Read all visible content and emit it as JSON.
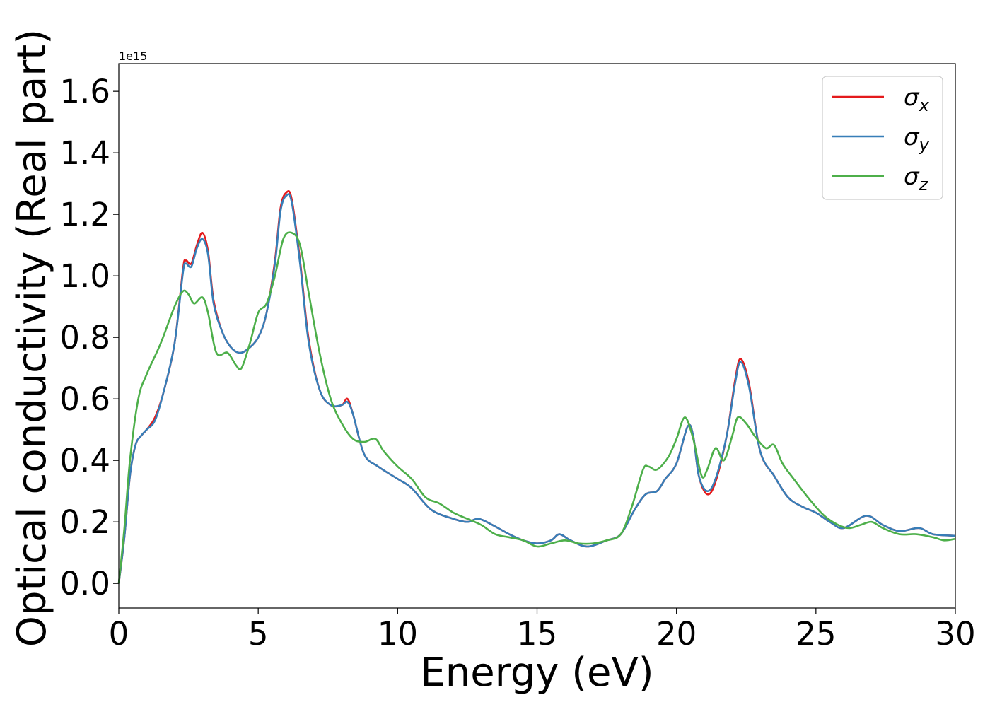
{
  "chart_data": {
    "type": "line",
    "xlabel": "Energy (eV)",
    "ylabel": "Optical conductivity (Real part)",
    "y_offset_label": "1e15",
    "xlim": [
      0,
      30
    ],
    "ylim": [
      -0.08,
      1.69
    ],
    "x_ticks": [
      0,
      5,
      10,
      15,
      20,
      25,
      30
    ],
    "y_ticks": [
      0.0,
      0.2,
      0.4,
      0.6,
      0.8,
      1.0,
      1.2,
      1.4,
      1.6
    ],
    "grid": false,
    "legend_position": "top-right",
    "series": [
      {
        "name": "σ",
        "subscript": "x",
        "color": "#e41a1c",
        "points": [
          [
            0,
            0.0
          ],
          [
            0.2,
            0.15
          ],
          [
            0.4,
            0.35
          ],
          [
            0.6,
            0.45
          ],
          [
            0.8,
            0.48
          ],
          [
            1.0,
            0.5
          ],
          [
            1.3,
            0.54
          ],
          [
            1.6,
            0.62
          ],
          [
            2.0,
            0.78
          ],
          [
            2.3,
            1.02
          ],
          [
            2.4,
            1.05
          ],
          [
            2.6,
            1.04
          ],
          [
            2.8,
            1.1
          ],
          [
            3.0,
            1.14
          ],
          [
            3.2,
            1.08
          ],
          [
            3.4,
            0.92
          ],
          [
            3.7,
            0.82
          ],
          [
            4.0,
            0.77
          ],
          [
            4.3,
            0.75
          ],
          [
            4.6,
            0.76
          ],
          [
            5.0,
            0.8
          ],
          [
            5.3,
            0.88
          ],
          [
            5.6,
            1.05
          ],
          [
            5.8,
            1.22
          ],
          [
            6.0,
            1.27
          ],
          [
            6.2,
            1.25
          ],
          [
            6.5,
            1.05
          ],
          [
            6.8,
            0.8
          ],
          [
            7.2,
            0.63
          ],
          [
            7.6,
            0.58
          ],
          [
            8.0,
            0.58
          ],
          [
            8.2,
            0.6
          ],
          [
            8.4,
            0.55
          ],
          [
            8.8,
            0.42
          ],
          [
            9.3,
            0.38
          ],
          [
            10.0,
            0.34
          ],
          [
            10.5,
            0.31
          ],
          [
            11.2,
            0.24
          ],
          [
            12.0,
            0.21
          ],
          [
            12.5,
            0.2
          ],
          [
            12.9,
            0.21
          ],
          [
            13.4,
            0.19
          ],
          [
            14.0,
            0.16
          ],
          [
            14.5,
            0.14
          ],
          [
            15.0,
            0.13
          ],
          [
            15.5,
            0.14
          ],
          [
            15.8,
            0.16
          ],
          [
            16.2,
            0.14
          ],
          [
            16.8,
            0.12
          ],
          [
            17.5,
            0.14
          ],
          [
            18.0,
            0.16
          ],
          [
            18.5,
            0.24
          ],
          [
            18.9,
            0.29
          ],
          [
            19.3,
            0.3
          ],
          [
            19.6,
            0.34
          ],
          [
            20.0,
            0.39
          ],
          [
            20.4,
            0.51
          ],
          [
            20.6,
            0.48
          ],
          [
            20.8,
            0.35
          ],
          [
            21.1,
            0.29
          ],
          [
            21.4,
            0.33
          ],
          [
            21.8,
            0.48
          ],
          [
            22.1,
            0.66
          ],
          [
            22.3,
            0.73
          ],
          [
            22.6,
            0.65
          ],
          [
            23.0,
            0.43
          ],
          [
            23.5,
            0.35
          ],
          [
            24.0,
            0.28
          ],
          [
            24.5,
            0.25
          ],
          [
            25.0,
            0.23
          ],
          [
            25.5,
            0.2
          ],
          [
            26.0,
            0.18
          ],
          [
            26.8,
            0.22
          ],
          [
            27.4,
            0.19
          ],
          [
            28.0,
            0.17
          ],
          [
            28.7,
            0.18
          ],
          [
            29.2,
            0.16
          ],
          [
            30.0,
            0.155
          ]
        ]
      },
      {
        "name": "σ",
        "subscript": "y",
        "color": "#377eb8",
        "points": [
          [
            0,
            0.0
          ],
          [
            0.2,
            0.15
          ],
          [
            0.4,
            0.35
          ],
          [
            0.6,
            0.45
          ],
          [
            0.8,
            0.48
          ],
          [
            1.0,
            0.5
          ],
          [
            1.3,
            0.53
          ],
          [
            1.6,
            0.62
          ],
          [
            2.0,
            0.78
          ],
          [
            2.3,
            1.01
          ],
          [
            2.4,
            1.04
          ],
          [
            2.6,
            1.03
          ],
          [
            2.8,
            1.09
          ],
          [
            3.0,
            1.12
          ],
          [
            3.2,
            1.07
          ],
          [
            3.4,
            0.91
          ],
          [
            3.7,
            0.82
          ],
          [
            4.0,
            0.77
          ],
          [
            4.3,
            0.75
          ],
          [
            4.6,
            0.76
          ],
          [
            5.0,
            0.8
          ],
          [
            5.3,
            0.88
          ],
          [
            5.6,
            1.04
          ],
          [
            5.8,
            1.21
          ],
          [
            6.0,
            1.26
          ],
          [
            6.2,
            1.24
          ],
          [
            6.5,
            1.04
          ],
          [
            6.8,
            0.79
          ],
          [
            7.2,
            0.63
          ],
          [
            7.6,
            0.58
          ],
          [
            8.0,
            0.58
          ],
          [
            8.2,
            0.59
          ],
          [
            8.4,
            0.55
          ],
          [
            8.8,
            0.42
          ],
          [
            9.3,
            0.38
          ],
          [
            10.0,
            0.34
          ],
          [
            10.5,
            0.31
          ],
          [
            11.2,
            0.24
          ],
          [
            12.0,
            0.21
          ],
          [
            12.5,
            0.2
          ],
          [
            12.9,
            0.21
          ],
          [
            13.4,
            0.19
          ],
          [
            14.0,
            0.16
          ],
          [
            14.5,
            0.14
          ],
          [
            15.0,
            0.13
          ],
          [
            15.5,
            0.14
          ],
          [
            15.8,
            0.16
          ],
          [
            16.2,
            0.14
          ],
          [
            16.8,
            0.12
          ],
          [
            17.5,
            0.14
          ],
          [
            18.0,
            0.16
          ],
          [
            18.5,
            0.24
          ],
          [
            18.9,
            0.29
          ],
          [
            19.3,
            0.3
          ],
          [
            19.6,
            0.34
          ],
          [
            20.0,
            0.39
          ],
          [
            20.4,
            0.51
          ],
          [
            20.6,
            0.48
          ],
          [
            20.8,
            0.35
          ],
          [
            21.1,
            0.3
          ],
          [
            21.4,
            0.34
          ],
          [
            21.8,
            0.48
          ],
          [
            22.1,
            0.65
          ],
          [
            22.3,
            0.72
          ],
          [
            22.6,
            0.64
          ],
          [
            23.0,
            0.43
          ],
          [
            23.5,
            0.35
          ],
          [
            24.0,
            0.28
          ],
          [
            24.5,
            0.25
          ],
          [
            25.0,
            0.23
          ],
          [
            25.5,
            0.2
          ],
          [
            26.0,
            0.18
          ],
          [
            26.8,
            0.22
          ],
          [
            27.4,
            0.19
          ],
          [
            28.0,
            0.17
          ],
          [
            28.7,
            0.18
          ],
          [
            29.2,
            0.16
          ],
          [
            30.0,
            0.155
          ]
        ]
      },
      {
        "name": "σ",
        "subscript": "z",
        "color": "#4daf4a",
        "points": [
          [
            0,
            0.0
          ],
          [
            0.2,
            0.18
          ],
          [
            0.4,
            0.4
          ],
          [
            0.7,
            0.6
          ],
          [
            1.0,
            0.68
          ],
          [
            1.5,
            0.78
          ],
          [
            2.0,
            0.9
          ],
          [
            2.3,
            0.95
          ],
          [
            2.5,
            0.94
          ],
          [
            2.7,
            0.91
          ],
          [
            3.0,
            0.93
          ],
          [
            3.2,
            0.88
          ],
          [
            3.5,
            0.75
          ],
          [
            3.9,
            0.75
          ],
          [
            4.2,
            0.71
          ],
          [
            4.4,
            0.7
          ],
          [
            4.7,
            0.78
          ],
          [
            5.0,
            0.88
          ],
          [
            5.3,
            0.91
          ],
          [
            5.6,
            1.0
          ],
          [
            5.9,
            1.12
          ],
          [
            6.2,
            1.14
          ],
          [
            6.5,
            1.1
          ],
          [
            6.8,
            0.95
          ],
          [
            7.2,
            0.75
          ],
          [
            7.6,
            0.6
          ],
          [
            8.0,
            0.52
          ],
          [
            8.4,
            0.47
          ],
          [
            8.8,
            0.46
          ],
          [
            9.2,
            0.47
          ],
          [
            9.5,
            0.43
          ],
          [
            10.0,
            0.38
          ],
          [
            10.5,
            0.34
          ],
          [
            11.0,
            0.28
          ],
          [
            11.5,
            0.26
          ],
          [
            12.0,
            0.23
          ],
          [
            12.5,
            0.21
          ],
          [
            13.0,
            0.19
          ],
          [
            13.5,
            0.16
          ],
          [
            14.0,
            0.15
          ],
          [
            14.5,
            0.14
          ],
          [
            15.0,
            0.12
          ],
          [
            15.5,
            0.13
          ],
          [
            16.0,
            0.14
          ],
          [
            16.5,
            0.13
          ],
          [
            17.0,
            0.13
          ],
          [
            17.5,
            0.14
          ],
          [
            18.0,
            0.16
          ],
          [
            18.4,
            0.25
          ],
          [
            18.8,
            0.37
          ],
          [
            19.0,
            0.38
          ],
          [
            19.3,
            0.37
          ],
          [
            19.7,
            0.41
          ],
          [
            20.0,
            0.47
          ],
          [
            20.3,
            0.54
          ],
          [
            20.6,
            0.47
          ],
          [
            20.9,
            0.35
          ],
          [
            21.1,
            0.37
          ],
          [
            21.4,
            0.44
          ],
          [
            21.7,
            0.4
          ],
          [
            22.0,
            0.48
          ],
          [
            22.2,
            0.54
          ],
          [
            22.5,
            0.52
          ],
          [
            22.8,
            0.48
          ],
          [
            23.2,
            0.44
          ],
          [
            23.5,
            0.45
          ],
          [
            23.8,
            0.39
          ],
          [
            24.2,
            0.34
          ],
          [
            24.8,
            0.27
          ],
          [
            25.3,
            0.22
          ],
          [
            25.8,
            0.19
          ],
          [
            26.2,
            0.18
          ],
          [
            26.6,
            0.19
          ],
          [
            27.0,
            0.2
          ],
          [
            27.4,
            0.18
          ],
          [
            28.0,
            0.16
          ],
          [
            28.6,
            0.16
          ],
          [
            29.2,
            0.15
          ],
          [
            29.6,
            0.14
          ],
          [
            30.0,
            0.145
          ]
        ]
      }
    ]
  }
}
